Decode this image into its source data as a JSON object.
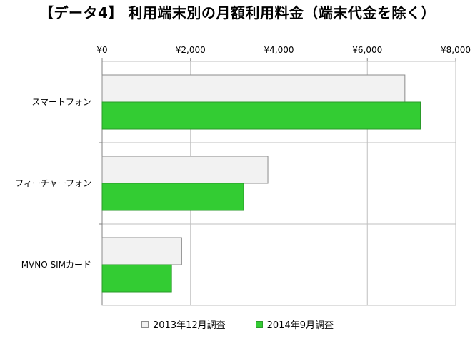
{
  "chart_data": {
    "type": "bar",
    "orientation": "horizontal",
    "title": "【データ4】 利用端末別の月額利用料金（端末代金を除く）",
    "categories": [
      "スマートフォン",
      "フィーチャーフォン",
      "MVNO SIMカード"
    ],
    "series": [
      {
        "name": "2013年12月調査",
        "values": [
          6850,
          3750,
          1800
        ],
        "color": "#f2f2f2",
        "stroke": "#8c8c8c"
      },
      {
        "name": "2014年9月調査",
        "values": [
          7200,
          3200,
          1570
        ],
        "color": "#33cc33",
        "stroke": "#2a9a2a"
      }
    ],
    "xlim": [
      0,
      8000
    ],
    "xticks": [
      0,
      2000,
      4000,
      6000,
      8000
    ],
    "xtick_labels": [
      "¥0",
      "¥2,000",
      "¥4,000",
      "¥6,000",
      "¥8,000"
    ],
    "xaxis_position": "top",
    "grid": true,
    "legend_position": "bottom"
  }
}
